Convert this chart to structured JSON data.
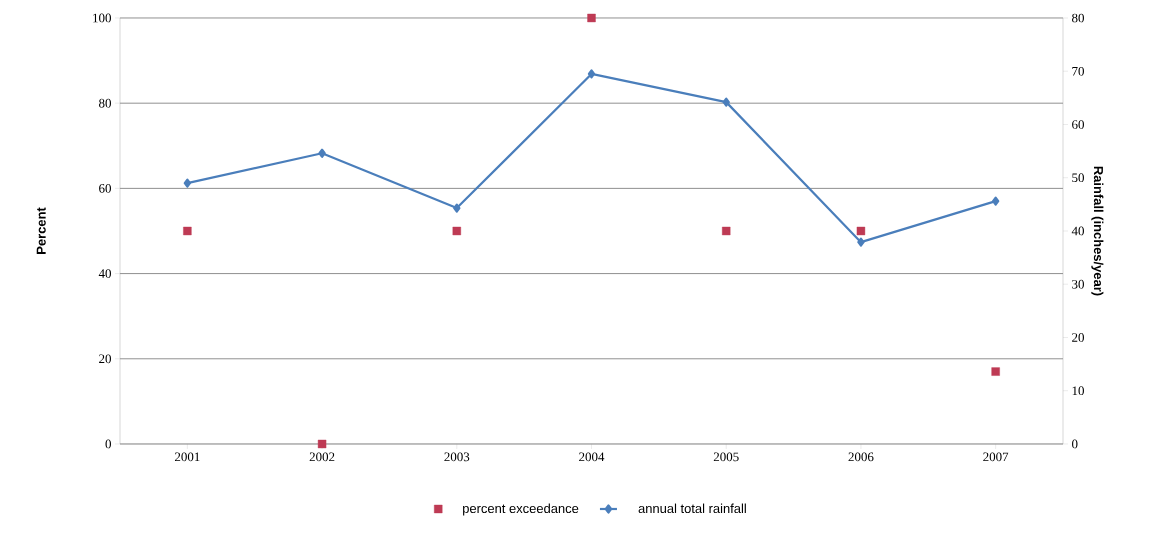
{
  "chart_data": {
    "type": "line",
    "ylabel": "Percent",
    "y2label": "Rainfall (inches/year)",
    "categories": [
      "2001",
      "2002",
      "2003",
      "2004",
      "2005",
      "2006",
      "2007"
    ],
    "series": [
      {
        "name": "percent exceedance",
        "type": "scatter",
        "color": "#be3a54",
        "marker": "square",
        "values": [
          50,
          0,
          50,
          100,
          50,
          50,
          17
        ]
      },
      {
        "name": "annual total rainfall",
        "axis": "y2",
        "color": "#4a7ebb",
        "marker": "diamond",
        "line_style": "solid",
        "values": [
          49.0,
          54.6,
          44.3,
          69.5,
          64.2,
          37.9,
          45.6
        ]
      }
    ],
    "ylim": [
      0,
      100
    ],
    "yticks": [
      0,
      20,
      40,
      60,
      80,
      100
    ],
    "y2lim": [
      0,
      80
    ],
    "y2ticks": [
      0,
      10,
      20,
      30,
      40,
      50,
      60,
      70,
      80
    ],
    "grid": "y",
    "legend": "bottom"
  }
}
